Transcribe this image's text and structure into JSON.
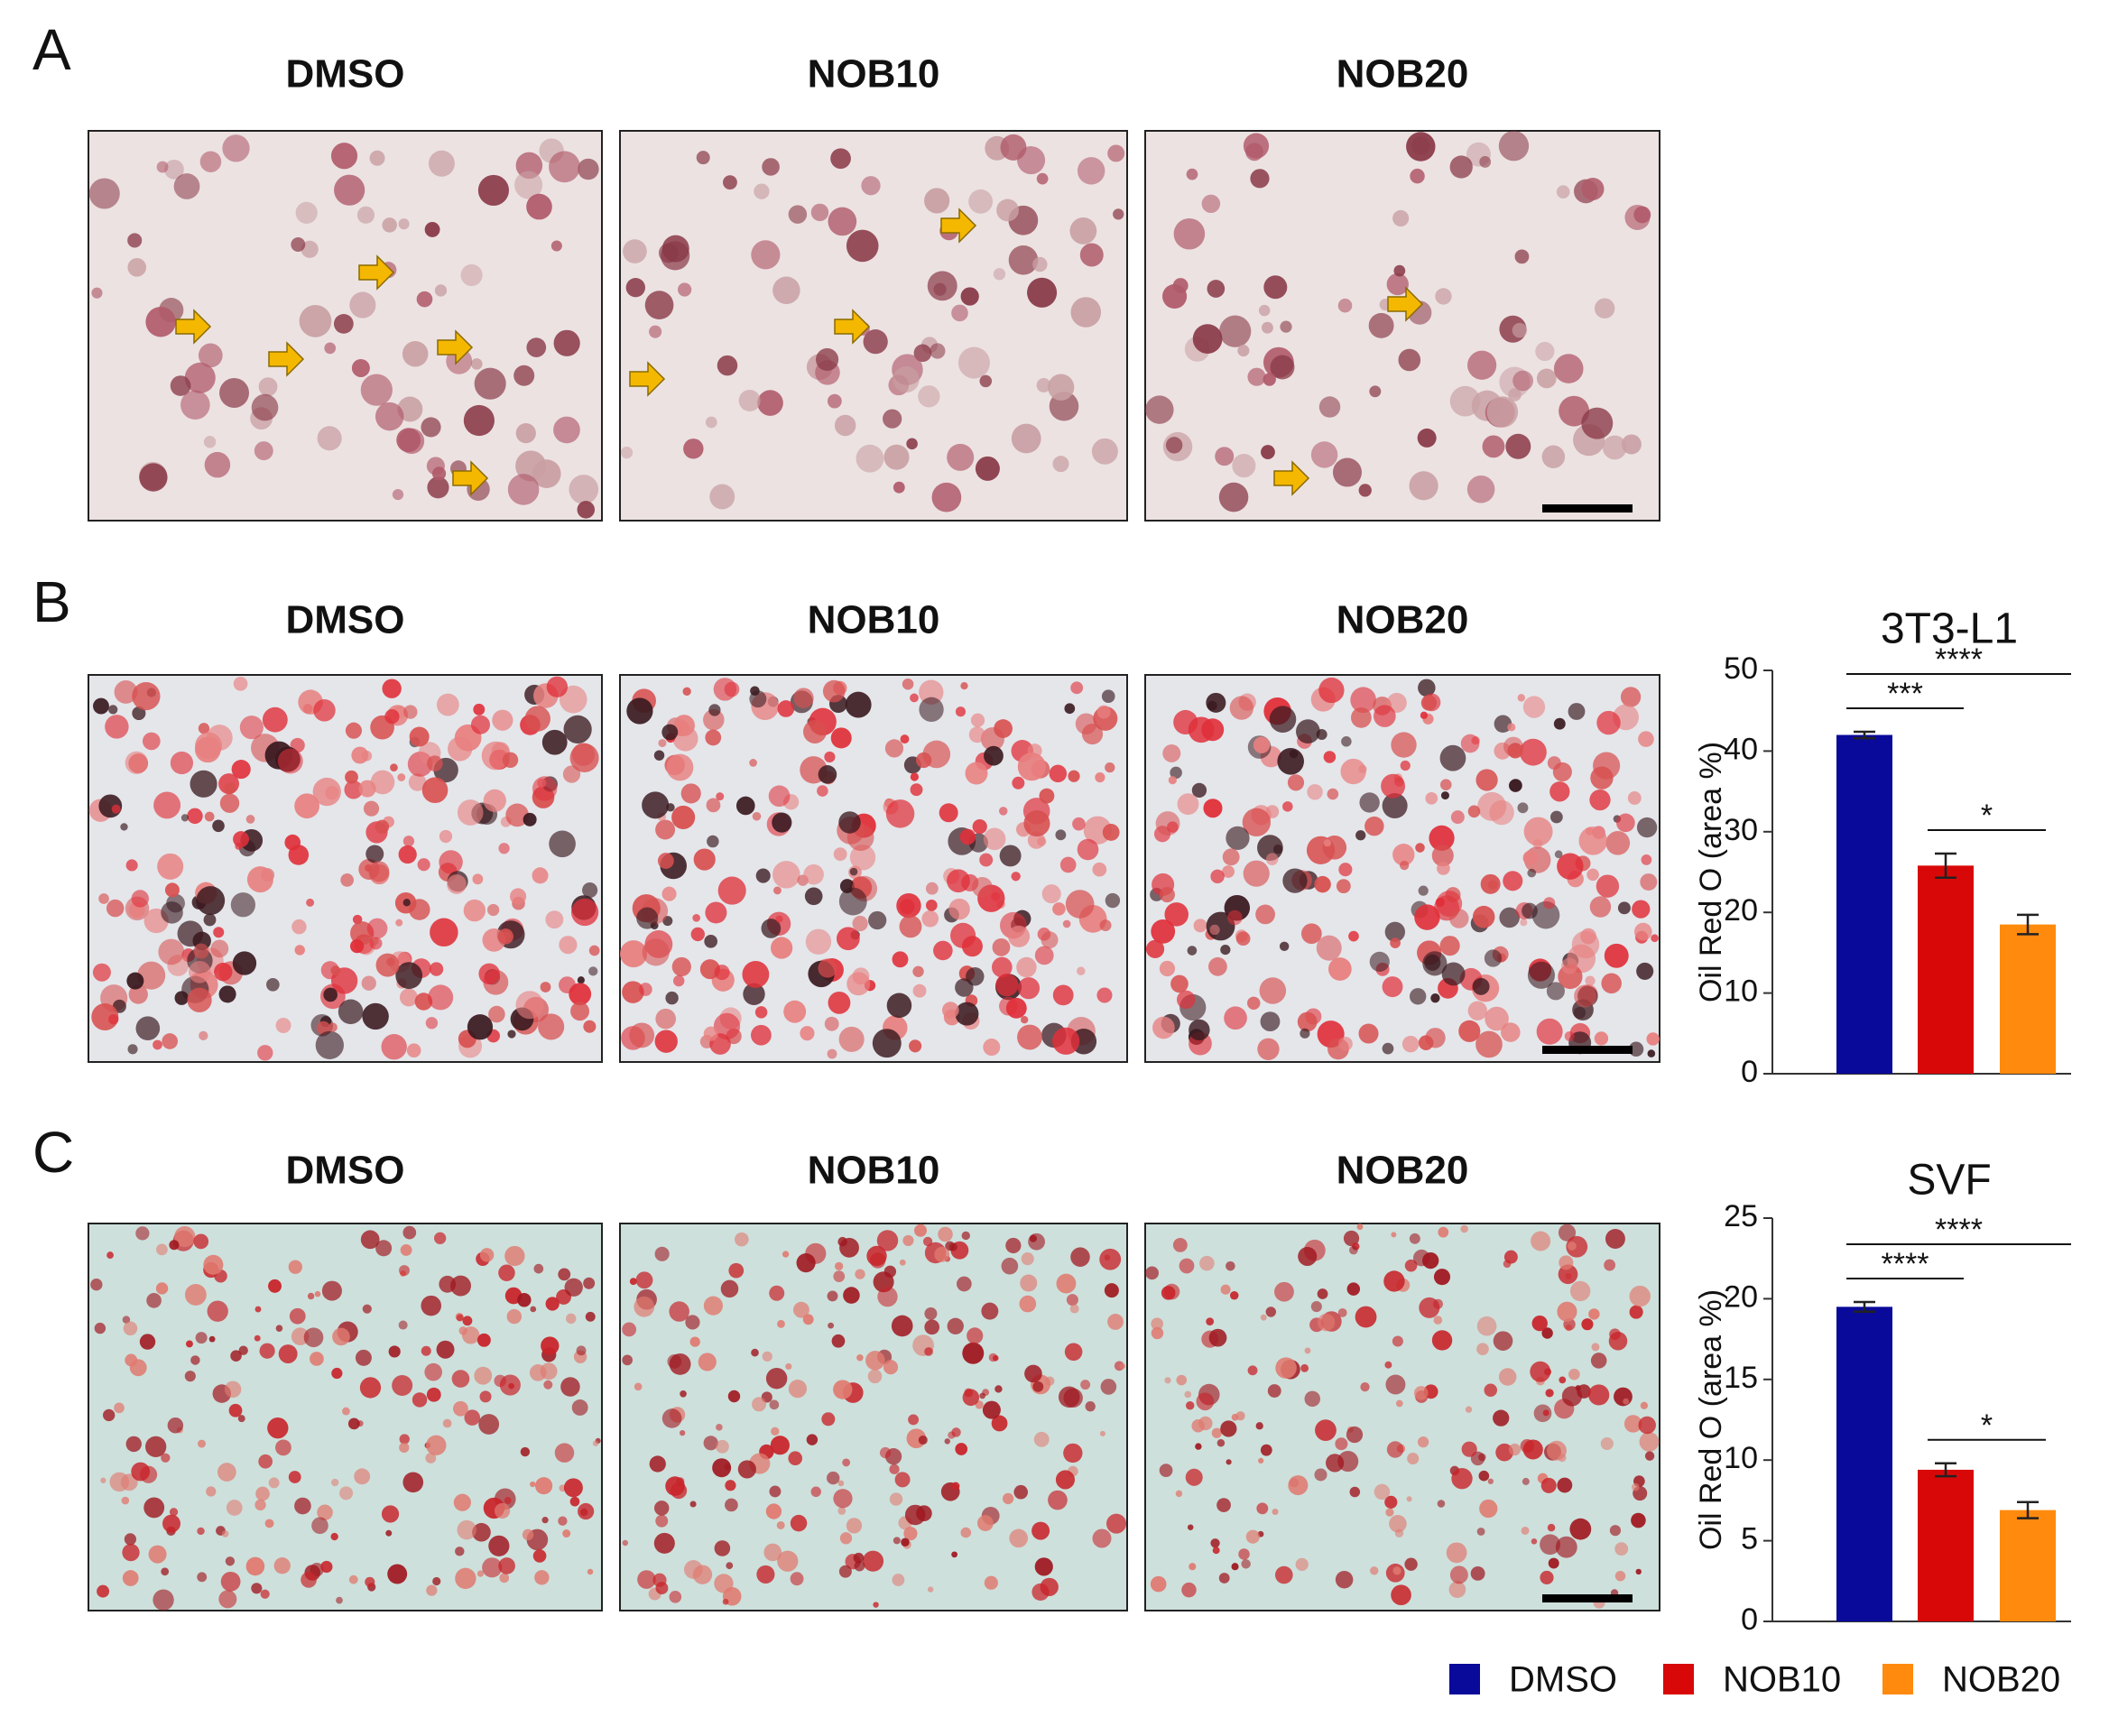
{
  "panels": [
    {
      "label": "A",
      "titles": [
        "DMSO",
        "NOB10",
        "NOB20"
      ]
    },
    {
      "label": "B",
      "titles": [
        "DMSO",
        "NOB10",
        "NOB20"
      ]
    },
    {
      "label": "C",
      "titles": [
        "DMSO",
        "NOB10",
        "NOB20"
      ]
    }
  ],
  "legend": [
    {
      "name": "DMSO",
      "color": "#0a0a9a"
    },
    {
      "name": "NOB10",
      "color": "#d80808"
    },
    {
      "name": "NOB20",
      "color": "#ff8a0e"
    }
  ],
  "chart_data": [
    {
      "type": "bar",
      "title": "3T3-L1",
      "y_label": "Oil Red O (area %)",
      "values": [
        42,
        25.8,
        18.5
      ],
      "errors": [
        0.4,
        1.5,
        1.2
      ],
      "ylim": [
        0,
        50
      ],
      "yticks": [
        0,
        10,
        20,
        30,
        40,
        50
      ],
      "annotations": [
        {
          "text": "***",
          "from": 0,
          "to": 1
        },
        {
          "text": "****",
          "from": 0,
          "to": 2
        },
        {
          "text": "*",
          "from": 1,
          "to": 2
        }
      ]
    },
    {
      "type": "bar",
      "title": "SVF",
      "y_label": "Oil Red O (area %)",
      "values": [
        19.5,
        9.4,
        6.9
      ],
      "errors": [
        0.3,
        0.4,
        0.5
      ],
      "ylim": [
        0,
        25
      ],
      "yticks": [
        0,
        5,
        10,
        15,
        20,
        25
      ],
      "annotations": [
        {
          "text": "****",
          "from": 0,
          "to": 1
        },
        {
          "text": "****",
          "from": 0,
          "to": 2
        },
        {
          "text": "*",
          "from": 1,
          "to": 2
        }
      ]
    }
  ]
}
